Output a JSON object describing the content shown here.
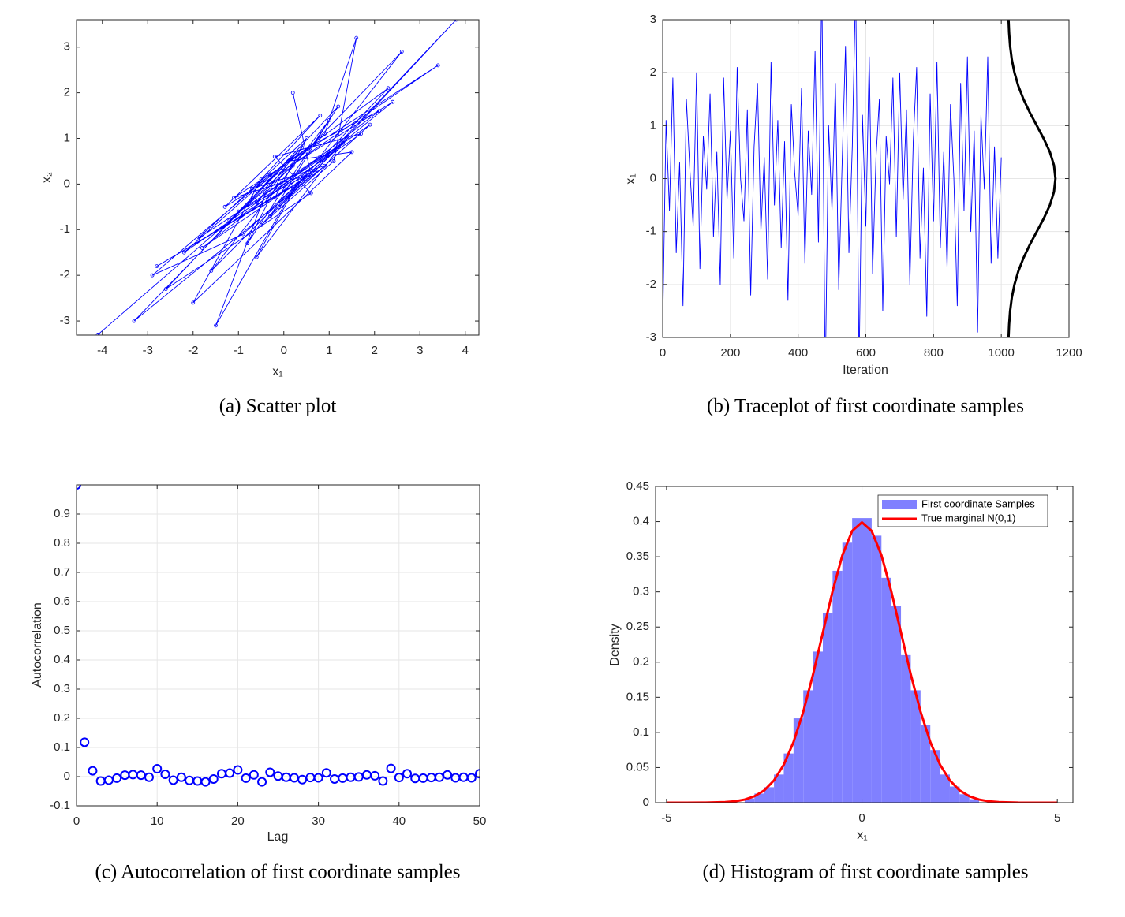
{
  "chart_data": [
    {
      "type": "line",
      "caption": "(a) Scatter plot",
      "xlabel": "x₁",
      "ylabel": "x₂",
      "grid": false,
      "markers": true,
      "xlim": [
        -4.57,
        4.3
      ],
      "ylim": [
        -3.31,
        3.6
      ],
      "xticks": [
        -4,
        -3,
        -2,
        -1,
        0,
        1,
        2,
        3,
        4
      ],
      "yticks": [
        -3,
        -2,
        -1,
        0,
        1,
        2,
        3
      ],
      "series": [
        {
          "color": "#0000ff",
          "x": [
            -4.1,
            0.2,
            -1.2,
            0.9,
            1.6,
            1.1,
            -0.5,
            0.4,
            -1.8,
            2.1,
            0.7,
            -0.3,
            -2.9,
            -0.9,
            1.4,
            0.1,
            -1.5,
            -0.4,
            0.8,
            2.6,
            -0.6,
            0.3,
            -2.2,
            1.9,
            -0.1,
            0.5,
            -1.1,
            3.4,
            0.0,
            -0.8,
            1.2,
            -2.6,
            0.6,
            -0.2,
            1.7,
            -1.4,
            0.4,
            -3.3,
            0.9,
            -0.7,
            2.3,
            0.2,
            -1.6,
            1.0,
            -0.3,
            3.8,
            0.7,
            -1.0,
            0.1,
            1.5,
            -2.0,
            -0.5,
            0.8,
            -1.3,
            2.4,
            -0.2,
            0.5,
            -1.9,
            1.3,
            -0.6,
            0.3,
            -2.8,
            0.6,
            0.2
          ],
          "values": [
            -3.3,
            0.4,
            -0.8,
            1.1,
            3.2,
            0.5,
            -0.9,
            0.1,
            -1.4,
            1.6,
            0.9,
            0.2,
            -2.0,
            -1.1,
            1.0,
            -0.3,
            -3.1,
            -0.2,
            0.6,
            2.9,
            -0.4,
            0.7,
            -1.5,
            1.3,
            -0.5,
            0.2,
            -0.3,
            2.6,
            0.3,
            -1.3,
            1.7,
            -2.3,
            -0.2,
            0.6,
            1.1,
            -1.0,
            0.8,
            -3.0,
            0.4,
            -0.1,
            2.1,
            -0.1,
            -1.9,
            1.4,
            -0.7,
            3.6,
            0.3,
            -0.6,
            0.5,
            0.7,
            -2.6,
            0.1,
            1.5,
            -0.5,
            1.8,
            -0.3,
            1.0,
            -1.2,
            0.9,
            -1.6,
            0.0,
            -1.8,
            0.2,
            2.0
          ]
        }
      ]
    },
    {
      "type": "line",
      "caption": "(b) Traceplot of first coordinate samples",
      "xlabel": "Iteration",
      "ylabel": "x₁",
      "grid": true,
      "markers": false,
      "xlim": [
        0,
        1200
      ],
      "ylim": [
        -3,
        3
      ],
      "xticks": [
        0,
        200,
        400,
        600,
        800,
        1000,
        1200
      ],
      "yticks": [
        -3,
        -2,
        -1,
        0,
        1,
        2,
        3
      ],
      "series": [
        {
          "color": "#0000ff",
          "x": [
            0,
            10,
            20,
            30,
            40,
            50,
            60,
            70,
            80,
            90,
            100,
            110,
            120,
            130,
            140,
            150,
            160,
            170,
            180,
            190,
            200,
            210,
            220,
            230,
            240,
            250,
            260,
            270,
            280,
            290,
            300,
            310,
            320,
            330,
            340,
            350,
            360,
            370,
            380,
            390,
            400,
            410,
            420,
            430,
            440,
            450,
            460,
            470,
            480,
            490,
            500,
            510,
            520,
            530,
            540,
            550,
            560,
            570,
            580,
            590,
            600,
            610,
            620,
            630,
            640,
            650,
            660,
            670,
            680,
            690,
            700,
            710,
            720,
            730,
            740,
            750,
            760,
            770,
            780,
            790,
            800,
            810,
            820,
            830,
            840,
            850,
            860,
            870,
            880,
            890,
            900,
            910,
            920,
            930,
            940,
            950,
            960,
            970,
            980,
            990,
            1000
          ],
          "values": [
            -2.8,
            1.1,
            -0.6,
            1.9,
            -1.4,
            0.3,
            -2.4,
            1.5,
            0.2,
            -0.9,
            2.0,
            -1.7,
            0.8,
            -0.2,
            1.6,
            -1.1,
            0.5,
            -2.0,
            1.9,
            -0.4,
            0.9,
            -1.5,
            2.1,
            0.0,
            -0.8,
            1.3,
            -2.2,
            0.6,
            1.8,
            -1.0,
            0.4,
            -1.9,
            2.2,
            -0.5,
            1.1,
            -1.3,
            0.7,
            -2.3,
            1.4,
            0.1,
            -0.7,
            1.7,
            -1.6,
            0.9,
            -0.3,
            2.4,
            -1.2,
            3.8,
            -3.9,
            1.0,
            -0.6,
            1.8,
            -2.1,
            0.3,
            2.5,
            -1.4,
            0.6,
            3.7,
            -3.6,
            1.2,
            -0.9,
            2.3,
            -1.8,
            0.4,
            1.5,
            -2.5,
            0.8,
            -0.1,
            1.9,
            -1.1,
            2.0,
            -0.4,
            1.3,
            -2.0,
            0.7,
            2.1,
            -1.5,
            0.2,
            -2.6,
            1.6,
            -0.8,
            2.2,
            -1.3,
            0.5,
            -1.7,
            1.4,
            0.0,
            -2.4,
            1.8,
            -0.6,
            2.3,
            -1.0,
            0.9,
            -2.9,
            1.2,
            -0.2,
            2.3,
            -1.6,
            0.6,
            -1.5,
            0.4
          ]
        },
        {
          "color": "#000000",
          "x": [
            1021.5,
            1023.2,
            1026.1,
            1031.1,
            1039,
            1050.3,
            1065.5,
            1084.1,
            1104.9,
            1125.7,
            1143.6,
            1155.7,
            1160,
            1155.7,
            1143.6,
            1125.7,
            1104.9,
            1084.1,
            1065.5,
            1050.3,
            1039,
            1031.1,
            1026.1,
            1023.2,
            1021.5
          ],
          "values": [
            -3,
            -2.75,
            -2.5,
            -2.25,
            -2,
            -1.75,
            -1.5,
            -1.25,
            -1,
            -0.75,
            -0.5,
            -0.25,
            0,
            0.25,
            0.5,
            0.75,
            1,
            1.25,
            1.5,
            1.75,
            2,
            2.25,
            2.5,
            2.75,
            3
          ]
        }
      ]
    },
    {
      "type": "scatter",
      "caption": "(c) Autocorrelation of first coordinate samples",
      "xlabel": "Lag",
      "ylabel": "Autocorrelation",
      "grid": true,
      "color": "#0000ff",
      "xlim": [
        0,
        50
      ],
      "ylim": [
        -0.1,
        1.0
      ],
      "xticks": [
        0,
        10,
        20,
        30,
        40,
        50
      ],
      "yticks": [
        -0.1,
        0,
        0.1,
        0.2,
        0.3,
        0.4,
        0.5,
        0.6,
        0.7,
        0.8,
        0.9
      ],
      "x": [
        0,
        1,
        2,
        3,
        4,
        5,
        6,
        7,
        8,
        9,
        10,
        11,
        12,
        13,
        14,
        15,
        16,
        17,
        18,
        19,
        20,
        21,
        22,
        23,
        24,
        25,
        26,
        27,
        28,
        29,
        30,
        31,
        32,
        33,
        34,
        35,
        36,
        37,
        38,
        39,
        40,
        41,
        42,
        43,
        44,
        45,
        46,
        47,
        48,
        49,
        50
      ],
      "values": [
        1,
        0.118,
        0.02,
        -0.015,
        -0.012,
        -0.005,
        0.005,
        0.007,
        0.005,
        -0.002,
        0.027,
        0.008,
        -0.012,
        -0.002,
        -0.013,
        -0.015,
        -0.018,
        -0.008,
        0.01,
        0.012,
        0.023,
        -0.005,
        0.006,
        -0.018,
        0.015,
        0.002,
        -0.002,
        -0.004,
        -0.01,
        -0.003,
        -0.004,
        0.013,
        -0.008,
        -0.005,
        -0.002,
        -0.001,
        0.006,
        0.003,
        -0.015,
        0.028,
        -0.003,
        0.01,
        -0.006,
        -0.005,
        -0.003,
        -0.002,
        0.006,
        -0.004,
        -0.002,
        -0.004,
        0.01
      ]
    },
    {
      "type": "histogram",
      "caption": "(d) Histogram of first coordinate samples",
      "xlabel": "x₁",
      "ylabel": "Density",
      "grid": false,
      "legend": "upper right",
      "xlim": [
        -5.28,
        5.4
      ],
      "ylim": [
        0,
        0.45
      ],
      "xticks": [
        -5,
        0,
        5
      ],
      "yticks": [
        0,
        0.05,
        0.1,
        0.15,
        0.2,
        0.25,
        0.3,
        0.35,
        0.4,
        0.45
      ],
      "series": [
        {
          "name": "First coordinate Samples",
          "color": "#8080ff",
          "bins": [
            -3,
            -2.75,
            -2.5,
            -2.25,
            -2,
            -1.75,
            -1.5,
            -1.25,
            -1,
            -0.75,
            -0.5,
            -0.25,
            0,
            0.25,
            0.5,
            0.75,
            1,
            1.25,
            1.5,
            1.75,
            2,
            2.25,
            2.5,
            2.75,
            3
          ],
          "values": [
            0.006,
            0.013,
            0.022,
            0.04,
            0.07,
            0.12,
            0.16,
            0.215,
            0.27,
            0.33,
            0.37,
            0.405,
            0.405,
            0.38,
            0.32,
            0.28,
            0.21,
            0.16,
            0.11,
            0.075,
            0.04,
            0.023,
            0.012,
            0.005
          ]
        },
        {
          "name": "True marginal N(0,1)",
          "color": "#ff0000",
          "x": [
            -5,
            -4.5,
            -4,
            -3.5,
            -3.25,
            -3,
            -2.75,
            -2.5,
            -2.25,
            -2,
            -1.75,
            -1.5,
            -1.25,
            -1,
            -0.75,
            -0.5,
            -0.25,
            0,
            0.25,
            0.5,
            0.75,
            1,
            1.25,
            1.5,
            1.75,
            2,
            2.25,
            2.5,
            2.75,
            3,
            3.25,
            3.5,
            4,
            4.5,
            5
          ],
          "values": [
            0,
            0,
            0.0001,
            0.0009,
            0.002,
            0.0044,
            0.0091,
            0.0175,
            0.0317,
            0.054,
            0.0863,
            0.1295,
            0.1826,
            0.242,
            0.3011,
            0.3521,
            0.3867,
            0.3989,
            0.3867,
            0.3521,
            0.3011,
            0.242,
            0.1826,
            0.1295,
            0.0863,
            0.054,
            0.0317,
            0.0175,
            0.0091,
            0.0044,
            0.002,
            0.0009,
            0.0001,
            0,
            0
          ]
        }
      ]
    }
  ]
}
